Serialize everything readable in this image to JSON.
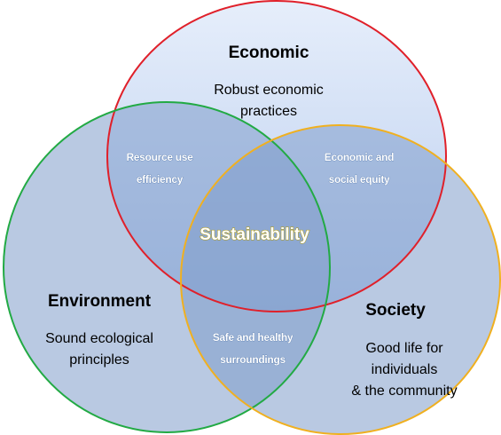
{
  "sets": [
    {
      "title": "Economic",
      "description": [
        "Robust economic",
        "practices"
      ]
    },
    {
      "title": "Environment",
      "description": [
        "Sound ecological",
        "principles"
      ]
    },
    {
      "title": "Society",
      "description": [
        "Good life for",
        "individuals",
        "& the community"
      ]
    }
  ],
  "overlaps": [
    {
      "label": [
        "Resource use",
        "efficiency"
      ]
    },
    {
      "label": [
        "Economic and",
        "social equity"
      ]
    },
    {
      "label": [
        "Safe and healthy",
        "surroundings"
      ]
    }
  ],
  "center": "Sustainability"
}
